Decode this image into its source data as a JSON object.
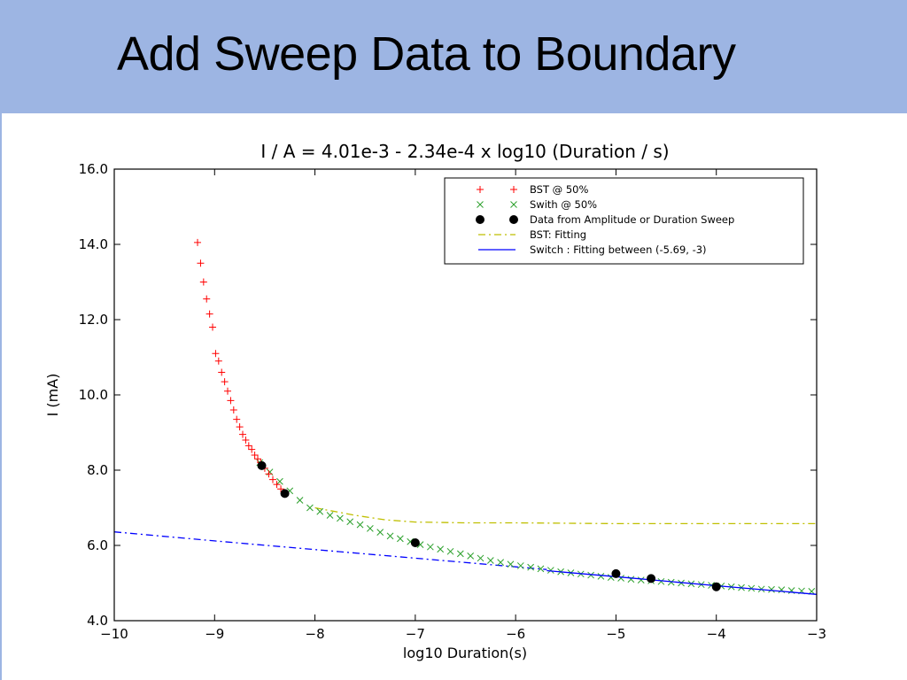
{
  "slide": {
    "title": "Add Sweep Data to Boundary",
    "header_color": "#9db5e3"
  },
  "chart_data": {
    "type": "scatter",
    "title": "I / A = 4.01e-3 - 2.34e-4 x log10 (Duration / s)",
    "xlabel": "log10 Duration(s)",
    "ylabel": "I (mA)",
    "xlim": [
      -10,
      -3
    ],
    "ylim": [
      4.0,
      16.0
    ],
    "xticks": [
      -10,
      -9,
      -8,
      -7,
      -6,
      -5,
      -4,
      -3
    ],
    "xtick_labels": [
      "−10",
      "−9",
      "−8",
      "−7",
      "−6",
      "−5",
      "−4",
      "−3"
    ],
    "yticks": [
      4.0,
      6.0,
      8.0,
      10.0,
      12.0,
      14.0,
      16.0
    ],
    "ytick_labels": [
      "4.0",
      "6.0",
      "8.0",
      "10.0",
      "12.0",
      "14.0",
      "16.0"
    ],
    "grid": false,
    "legend_position": "top-right",
    "series": [
      {
        "name": "BST @ 50%",
        "marker": "+",
        "color": "#ff0000",
        "x": [
          -9.17,
          -9.14,
          -9.11,
          -9.08,
          -9.05,
          -9.02,
          -8.99,
          -8.96,
          -8.93,
          -8.9,
          -8.87,
          -8.84,
          -8.81,
          -8.78,
          -8.75,
          -8.72,
          -8.69,
          -8.66,
          -8.63,
          -8.6,
          -8.57,
          -8.54,
          -8.5,
          -8.46,
          -8.42,
          -8.38,
          -8.34,
          -8.3
        ],
        "y": [
          14.05,
          13.5,
          13.0,
          12.55,
          12.15,
          11.8,
          11.1,
          10.9,
          10.6,
          10.35,
          10.1,
          9.85,
          9.6,
          9.35,
          9.15,
          8.95,
          8.8,
          8.65,
          8.55,
          8.4,
          8.3,
          8.2,
          8.05,
          7.9,
          7.75,
          7.62,
          7.5,
          7.4
        ]
      },
      {
        "name": "Swith @ 50%",
        "marker": "x",
        "color": "#2ca02c",
        "x": [
          -8.55,
          -8.45,
          -8.35,
          -8.25,
          -8.15,
          -8.05,
          -7.95,
          -7.85,
          -7.75,
          -7.65,
          -7.55,
          -7.45,
          -7.35,
          -7.25,
          -7.15,
          -7.05,
          -6.95,
          -6.85,
          -6.75,
          -6.65,
          -6.55,
          -6.45,
          -6.35,
          -6.25,
          -6.15,
          -6.05,
          -5.95,
          -5.85,
          -5.75,
          -5.65,
          -5.55,
          -5.45,
          -5.35,
          -5.25,
          -5.15,
          -5.05,
          -4.95,
          -4.85,
          -4.75,
          -4.65,
          -4.55,
          -4.45,
          -4.35,
          -4.25,
          -4.15,
          -4.05,
          -3.95,
          -3.85,
          -3.75,
          -3.65,
          -3.55,
          -3.45,
          -3.35,
          -3.25,
          -3.15,
          -3.05
        ],
        "y": [
          8.2,
          7.95,
          7.7,
          7.45,
          7.2,
          7.0,
          6.9,
          6.8,
          6.72,
          6.63,
          6.55,
          6.45,
          6.35,
          6.25,
          6.18,
          6.1,
          6.02,
          5.96,
          5.9,
          5.84,
          5.78,
          5.72,
          5.66,
          5.6,
          5.55,
          5.5,
          5.46,
          5.42,
          5.38,
          5.34,
          5.3,
          5.27,
          5.24,
          5.21,
          5.18,
          5.15,
          5.13,
          5.1,
          5.08,
          5.06,
          5.04,
          5.02,
          5.0,
          4.98,
          4.96,
          4.94,
          4.92,
          4.9,
          4.88,
          4.86,
          4.84,
          4.83,
          4.82,
          4.8,
          4.79,
          4.78
        ]
      },
      {
        "name": "Data from Amplitude or Duration Sweep",
        "marker": "o",
        "color": "#000000",
        "x": [
          -8.53,
          -8.3,
          -7.0,
          -5.0,
          -4.65,
          -4.0
        ],
        "y": [
          8.12,
          7.38,
          6.07,
          5.25,
          5.12,
          4.9
        ]
      },
      {
        "name": "BST: Fitting",
        "line": "dashdot",
        "color": "#bfbf00",
        "x": [
          -8.0,
          -7.6,
          -7.3,
          -7.0,
          -6.5,
          -6.0,
          -5.0,
          -4.0,
          -3.0
        ],
        "y": [
          7.0,
          6.8,
          6.68,
          6.62,
          6.6,
          6.6,
          6.58,
          6.58,
          6.58
        ]
      },
      {
        "name": "Switch : Fitting between (-5.69, -3)",
        "line": "solid",
        "color": "#0000ff",
        "x": [
          -5.69,
          -5.0,
          -4.0,
          -3.0
        ],
        "y": [
          5.33,
          5.17,
          4.93,
          4.7
        ]
      },
      {
        "name": "",
        "line": "dashdot",
        "color": "#0000ff",
        "x": [
          -10.0,
          -9.0,
          -8.0,
          -7.0,
          -6.0,
          -5.69
        ],
        "y": [
          6.36,
          6.12,
          5.89,
          5.66,
          5.43,
          5.36
        ]
      }
    ]
  }
}
